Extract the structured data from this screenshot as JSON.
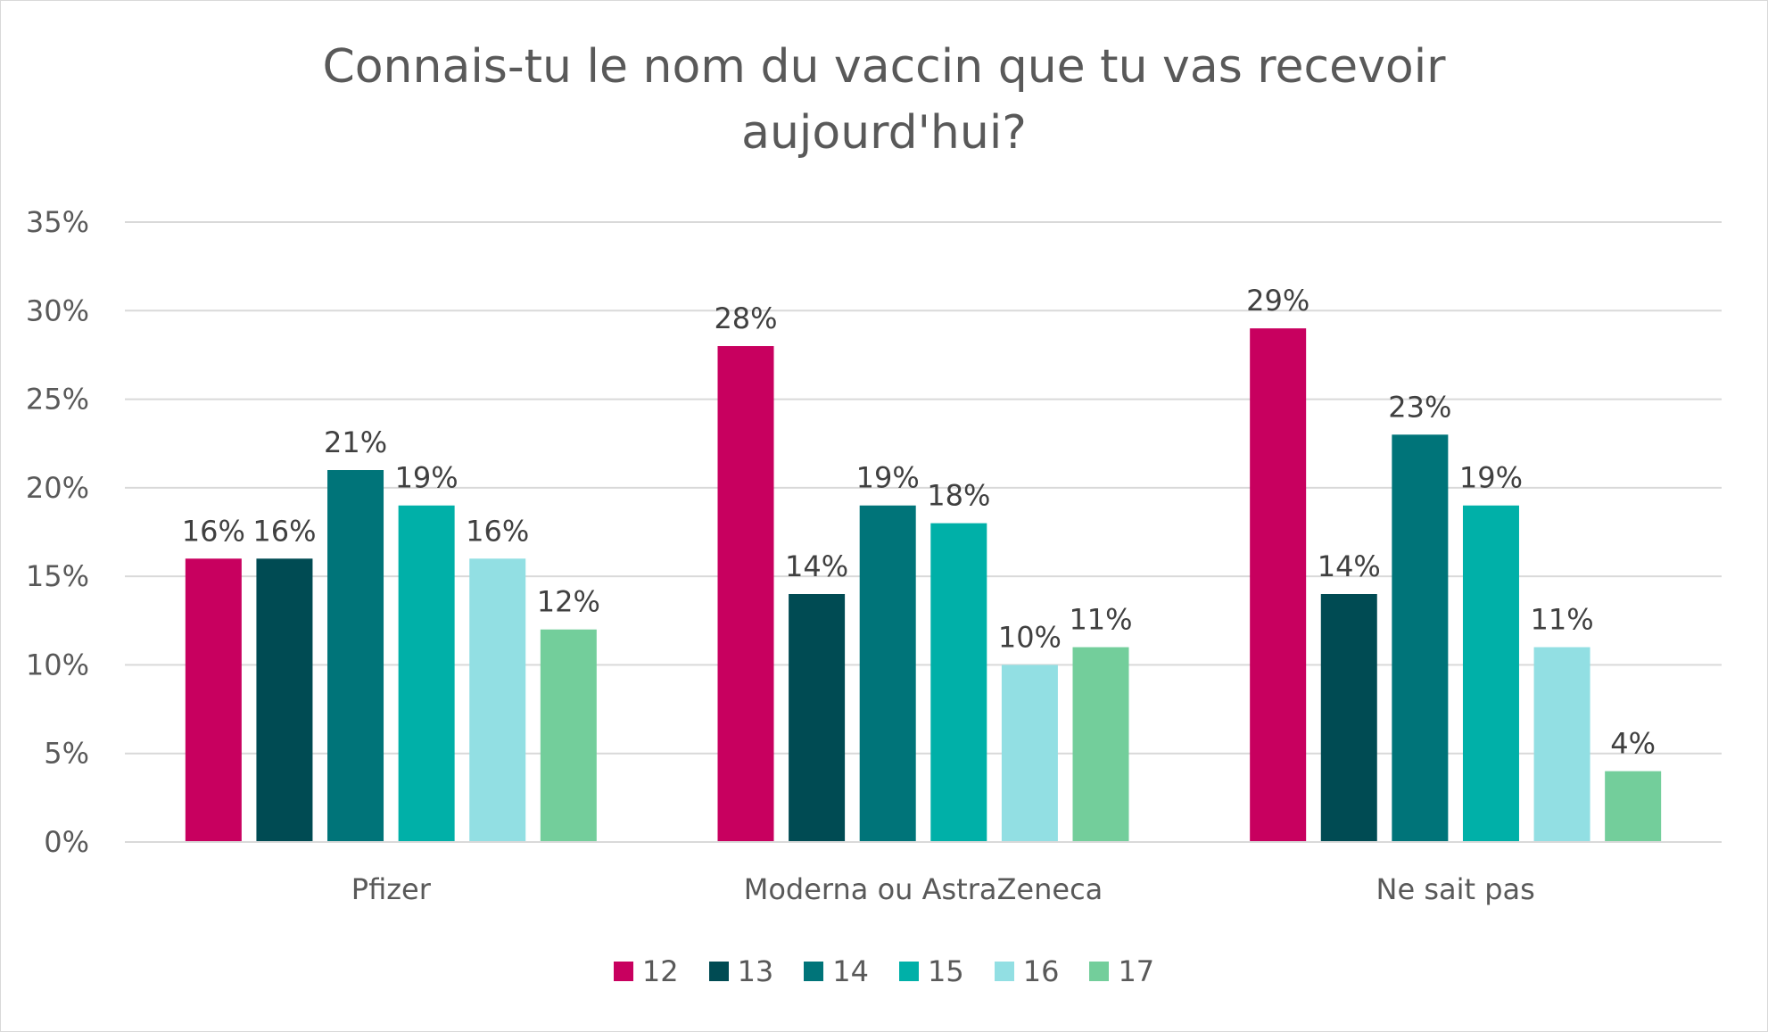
{
  "chart_data": {
    "type": "bar",
    "title_lines": [
      "Connais-tu le nom du vaccin que tu vas recevoir",
      "aujourd'hui?"
    ],
    "categories": [
      "Pfizer",
      "Moderna ou AstraZeneca",
      "Ne sait pas"
    ],
    "series": [
      {
        "name": "12",
        "color": "#C8005F",
        "values": [
          16,
          28,
          29
        ]
      },
      {
        "name": "13",
        "color": "#004B53",
        "values": [
          16,
          14,
          14
        ]
      },
      {
        "name": "14",
        "color": "#007479",
        "values": [
          21,
          19,
          23
        ]
      },
      {
        "name": "15",
        "color": "#00B0A8",
        "values": [
          19,
          18,
          19
        ]
      },
      {
        "name": "16",
        "color": "#92DFE3",
        "values": [
          16,
          10,
          11
        ]
      },
      {
        "name": "17",
        "color": "#73CE9B",
        "values": [
          12,
          11,
          4
        ]
      }
    ],
    "ylim": [
      0,
      35
    ],
    "yticks": [
      "0%",
      "5%",
      "10%",
      "15%",
      "20%",
      "25%",
      "30%",
      "35%"
    ],
    "value_suffix": "%",
    "grid": true,
    "legend_position": "bottom"
  }
}
